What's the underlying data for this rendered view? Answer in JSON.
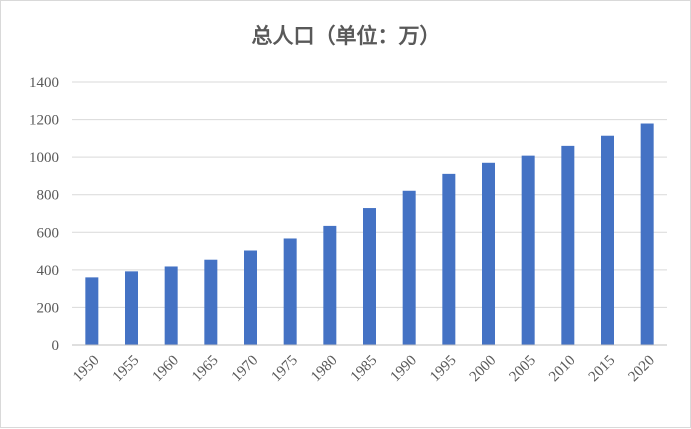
{
  "chart_data": {
    "type": "bar",
    "title": "总人口（单位：万）",
    "xlabel": "",
    "ylabel": "",
    "categories": [
      "1950",
      "1955",
      "1960",
      "1965",
      "1970",
      "1975",
      "1980",
      "1985",
      "1990",
      "1995",
      "2000",
      "2005",
      "2010",
      "2015",
      "2020"
    ],
    "values": [
      360,
      392,
      418,
      454,
      503,
      567,
      634,
      729,
      821,
      911,
      970,
      1008,
      1060,
      1114,
      1179
    ],
    "ylim": [
      0,
      1400
    ],
    "yticks": [
      0,
      200,
      400,
      600,
      800,
      1000,
      1200,
      1400
    ],
    "grid": true,
    "legend": "none",
    "bar_color": "#4472c4"
  }
}
